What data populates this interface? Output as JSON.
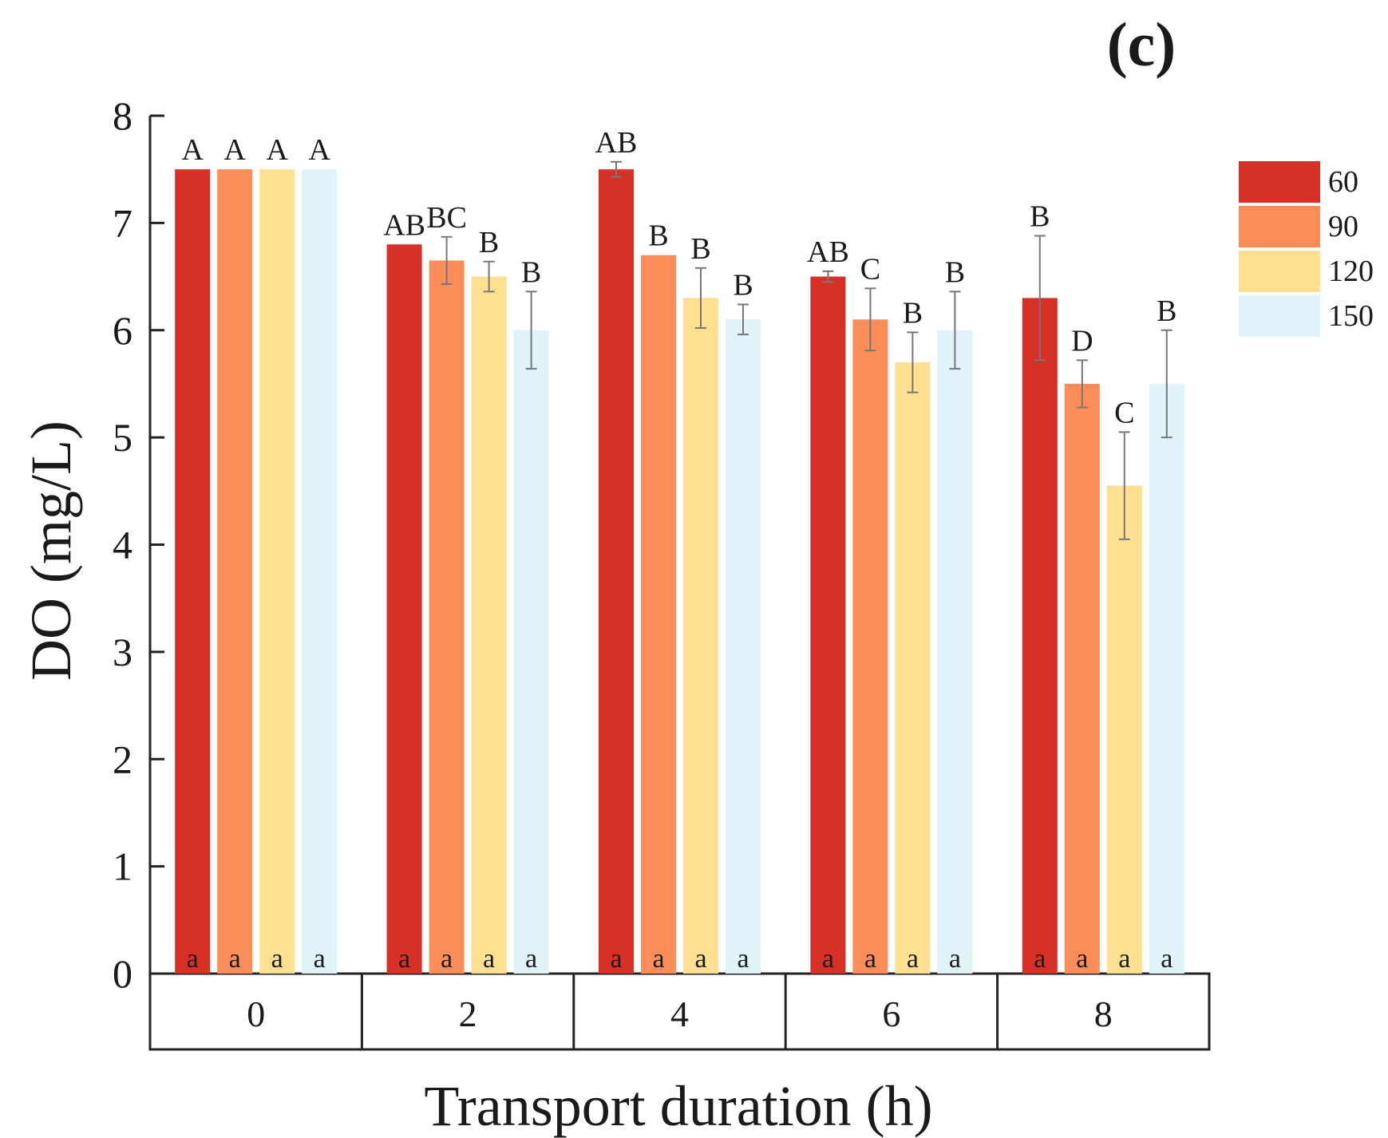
{
  "chart_data": {
    "type": "bar",
    "panel_label": "(c)",
    "xlabel": "Transport duration (h)",
    "ylabel": "DO (mg/L)",
    "ylim": [
      0,
      8
    ],
    "yticks": [
      "0",
      "1",
      "2",
      "3",
      "4",
      "5",
      "6",
      "7",
      "8"
    ],
    "categories": [
      "0",
      "2",
      "4",
      "6",
      "8"
    ],
    "legend_position": "top-right",
    "series": [
      {
        "name": "60",
        "color": "#d73027",
        "values": [
          7.5,
          6.8,
          7.5,
          6.5,
          6.3
        ],
        "errors": [
          0,
          0,
          0.07,
          0.05,
          0.58
        ],
        "upper_letters": [
          "A",
          "AB",
          "AB",
          "AB",
          "B"
        ],
        "lower_letters": [
          "a",
          "a",
          "a",
          "a",
          "a"
        ]
      },
      {
        "name": "90",
        "color": "#fc8d59",
        "values": [
          7.5,
          6.65,
          6.7,
          6.1,
          5.5
        ],
        "errors": [
          0,
          0.22,
          0,
          0.29,
          0.22
        ],
        "upper_letters": [
          "A",
          "BC",
          "B",
          "C",
          "D"
        ],
        "lower_letters": [
          "a",
          "a",
          "a",
          "a",
          "a"
        ]
      },
      {
        "name": "120",
        "color": "#fee090",
        "values": [
          7.5,
          6.5,
          6.3,
          5.7,
          4.55
        ],
        "errors": [
          0,
          0.14,
          0.28,
          0.28,
          0.5
        ],
        "upper_letters": [
          "A",
          "B",
          "B",
          "B",
          "C"
        ],
        "lower_letters": [
          "a",
          "a",
          "a",
          "a",
          "a"
        ]
      },
      {
        "name": "150",
        "color": "#e0f3f8",
        "values": [
          7.5,
          6.0,
          6.1,
          6.0,
          5.5
        ],
        "errors": [
          0,
          0.36,
          0.14,
          0.36,
          0.5
        ],
        "upper_letters": [
          "A",
          "B",
          "B",
          "B",
          "B"
        ],
        "lower_letters": [
          "a",
          "a",
          "a",
          "a",
          "a"
        ]
      }
    ]
  }
}
